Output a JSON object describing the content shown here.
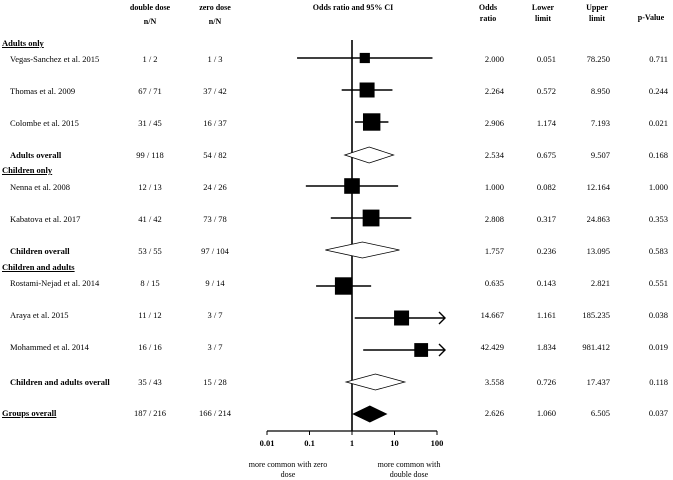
{
  "headers": {
    "col_double": "double dose",
    "col_double_unit": "n/N",
    "col_zero": "zero dose",
    "col_zero_unit": "n/N",
    "col_plot": "Odds ratio and 95% CI",
    "col_or": "Odds ratio",
    "col_lower": "Lower limit",
    "col_upper": "Upper limit",
    "col_p": "p-Value"
  },
  "sections": {
    "adults": "Adults only",
    "children": "Children only",
    "both": "Children and adults",
    "overall": "Groups overall"
  },
  "rows": [
    {
      "study": "Vegas-Sanchez et al. 2015",
      "bold": false,
      "double": "1 / 2",
      "zero": "1 / 3",
      "or": "2.000",
      "lower": "0.051",
      "upper": "78.250",
      "p": "0.711"
    },
    {
      "study": "Thomas et al. 2009",
      "bold": false,
      "double": "67 / 71",
      "zero": "37 / 42",
      "or": "2.264",
      "lower": "0.572",
      "upper": "8.950",
      "p": "0.244"
    },
    {
      "study": "Colombe et al. 2015",
      "bold": false,
      "double": "31 / 45",
      "zero": "16 / 37",
      "or": "2.906",
      "lower": "1.174",
      "upper": "7.193",
      "p": "0.021"
    },
    {
      "study": "Adults overall",
      "bold": true,
      "double": "99 / 118",
      "zero": "54 / 82",
      "or": "2.534",
      "lower": "0.675",
      "upper": "9.507",
      "p": "0.168"
    },
    {
      "study": "Nenna et al. 2008",
      "bold": false,
      "double": "12 / 13",
      "zero": "24 / 26",
      "or": "1.000",
      "lower": "0.082",
      "upper": "12.164",
      "p": "1.000"
    },
    {
      "study": "Kabatova et al. 2017",
      "bold": false,
      "double": "41 / 42",
      "zero": "73 / 78",
      "or": "2.808",
      "lower": "0.317",
      "upper": "24.863",
      "p": "0.353"
    },
    {
      "study": "Children overall",
      "bold": true,
      "double": "53 / 55",
      "zero": "97 / 104",
      "or": "1.757",
      "lower": "0.236",
      "upper": "13.095",
      "p": "0.583"
    },
    {
      "study": "Rostami-Nejad et al. 2014",
      "bold": false,
      "double": "8 / 15",
      "zero": "9 / 14",
      "or": "0.635",
      "lower": "0.143",
      "upper": "2.821",
      "p": "0.551"
    },
    {
      "study": "Araya et al. 2015",
      "bold": false,
      "double": "11 / 12",
      "zero": "3 / 7",
      "or": "14.667",
      "lower": "1.161",
      "upper": "185.235",
      "p": "0.038"
    },
    {
      "study": "Mohammed et al. 2014",
      "bold": false,
      "double": "16 / 16",
      "zero": "3 / 7",
      "or": "42.429",
      "lower": "1.834",
      "upper": "981.412",
      "p": "0.019"
    },
    {
      "study": "Children and adults overall",
      "bold": true,
      "double": "35 / 43",
      "zero": "15 / 28",
      "or": "3.558",
      "lower": "0.726",
      "upper": "17.437",
      "p": "0.118"
    },
    {
      "study": "",
      "bold": false,
      "double": "187 / 216",
      "zero": "166 / 214",
      "or": "2.626",
      "lower": "1.060",
      "upper": "6.505",
      "p": "0.037"
    }
  ],
  "chart_data": {
    "type": "forest",
    "x_scale": "log",
    "xlim": [
      0.01,
      100
    ],
    "x_ticks": [
      "0.01",
      "0.1",
      "1",
      "10",
      "100"
    ],
    "x_tick_values": [
      0.01,
      0.1,
      1,
      10,
      100
    ],
    "reference_line": 1,
    "left_caption": "more common with zero dose",
    "right_caption": "more common with double dose",
    "points": [
      {
        "or": 2.0,
        "lower": 0.051,
        "upper": 78.25,
        "kind": "square",
        "weight": 0.35
      },
      {
        "or": 2.264,
        "lower": 0.572,
        "upper": 8.95,
        "kind": "square",
        "weight": 0.75
      },
      {
        "or": 2.906,
        "lower": 1.174,
        "upper": 7.193,
        "kind": "square",
        "weight": 0.95
      },
      {
        "or": 2.534,
        "lower": 0.675,
        "upper": 9.507,
        "kind": "diamond",
        "fill": "#ffffff"
      },
      {
        "or": 1.0,
        "lower": 0.082,
        "upper": 12.164,
        "kind": "square",
        "weight": 0.8
      },
      {
        "or": 2.808,
        "lower": 0.317,
        "upper": 24.863,
        "kind": "square",
        "weight": 0.9
      },
      {
        "or": 1.757,
        "lower": 0.236,
        "upper": 13.095,
        "kind": "diamond",
        "fill": "#ffffff"
      },
      {
        "or": 0.635,
        "lower": 0.143,
        "upper": 2.821,
        "kind": "square",
        "weight": 0.95
      },
      {
        "or": 14.667,
        "lower": 1.161,
        "upper": 185.235,
        "kind": "square",
        "weight": 0.75,
        "arrow_right": true
      },
      {
        "or": 42.429,
        "lower": 1.834,
        "upper": 981.412,
        "kind": "square",
        "weight": 0.65,
        "arrow_right": true
      },
      {
        "or": 3.558,
        "lower": 0.726,
        "upper": 17.437,
        "kind": "diamond",
        "fill": "#ffffff"
      },
      {
        "or": 2.626,
        "lower": 1.06,
        "upper": 6.505,
        "kind": "diamond",
        "fill": "#000000"
      }
    ]
  }
}
